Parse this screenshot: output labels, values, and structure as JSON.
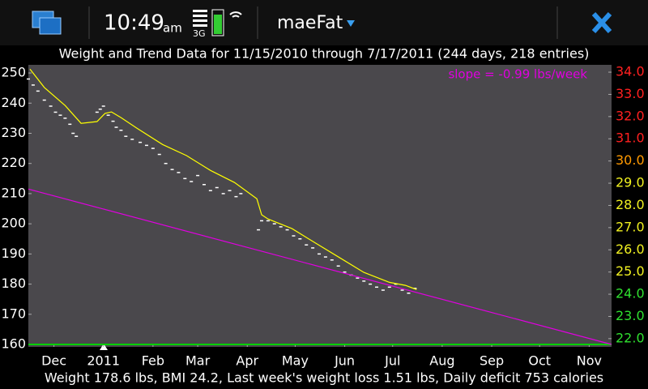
{
  "status_bar": {
    "time": "10:49",
    "ampm": "am",
    "network": "3G",
    "app": "maeFat"
  },
  "chart_data": {
    "type": "line",
    "title": "Weight and Trend Data for 11/15/2010 through 7/17/2011   (244 days, 218 entries)",
    "annotation": "slope =  -0.99 lbs/week",
    "annotation_color": "#e000e0",
    "xlim": [
      0,
      365
    ],
    "xticks": [
      {
        "value": 16,
        "label": "Dec"
      },
      {
        "value": 47,
        "label": "2011"
      },
      {
        "value": 78,
        "label": "Feb"
      },
      {
        "value": 106,
        "label": "Mar"
      },
      {
        "value": 137,
        "label": "Apr"
      },
      {
        "value": 167,
        "label": "May"
      },
      {
        "value": 198,
        "label": "Jun"
      },
      {
        "value": 228,
        "label": "Jul"
      },
      {
        "value": 259,
        "label": "Aug"
      },
      {
        "value": 290,
        "label": "Sep"
      },
      {
        "value": 320,
        "label": "Oct"
      },
      {
        "value": 351,
        "label": "Nov"
      }
    ],
    "ylim": [
      159.2,
      252.7
    ],
    "yticks": [
      160,
      170,
      180,
      190,
      200,
      210,
      220,
      230,
      240,
      250
    ],
    "y2lim": [
      21.63,
      34.33
    ],
    "y2ticks": [
      {
        "value": 22,
        "label": "22.0"
      },
      {
        "value": 23,
        "label": "23.0"
      },
      {
        "value": 24,
        "label": "24.0"
      },
      {
        "value": 25,
        "label": "25.0"
      },
      {
        "value": 26,
        "label": "26.0"
      },
      {
        "value": 27,
        "label": "27.0"
      },
      {
        "value": 28,
        "label": "28.0"
      },
      {
        "value": 29,
        "label": "29.0"
      },
      {
        "value": 30,
        "label": "30.0"
      },
      {
        "value": 31,
        "label": "31.0"
      },
      {
        "value": 32,
        "label": "32.0"
      },
      {
        "value": 33,
        "label": "33.0"
      },
      {
        "value": 34,
        "label": "34.0"
      }
    ],
    "y2tick_colors": [
      "#30e030",
      "#30e030",
      "#30e030",
      "#f0f020",
      "#f0f020",
      "#f0f020",
      "#f0f020",
      "#f0f020",
      "#ff9900",
      "#ff2020",
      "#ff2020",
      "#ff2020",
      "#ff2020"
    ],
    "hlines": [
      {
        "value": 160,
        "color": "#00d000"
      }
    ],
    "series": [
      {
        "style": "markers",
        "color": "#ffffff",
        "x": [
          0,
          3,
          6,
          10,
          14,
          17,
          20,
          23,
          26,
          28,
          30,
          43,
          45,
          47,
          50,
          53,
          55,
          58,
          61,
          65,
          70,
          74,
          78,
          82,
          86,
          90,
          94,
          98,
          102,
          106,
          110,
          114,
          118,
          122,
          126,
          130,
          133,
          144,
          146,
          150,
          154,
          158,
          162,
          166,
          170,
          174,
          178,
          182,
          186,
          190,
          194,
          198,
          202,
          206,
          210,
          214,
          218,
          222,
          226,
          230,
          234,
          238,
          242
        ],
        "values": [
          248,
          246,
          244,
          241,
          239,
          237,
          236,
          235,
          233,
          230,
          229,
          237,
          238,
          239,
          236,
          234,
          232,
          231,
          229,
          228,
          227,
          226,
          225,
          223,
          220,
          218,
          217,
          215,
          214,
          216,
          213,
          211,
          212,
          210,
          211,
          209,
          210,
          198,
          201,
          201,
          200,
          199,
          198,
          196,
          195,
          193,
          192,
          190,
          189,
          188,
          186,
          184,
          183,
          182,
          181,
          180,
          179,
          178,
          179,
          180,
          178,
          177,
          178.6
        ]
      },
      {
        "style": "line",
        "color": "#ffff00",
        "x": [
          1,
          10,
          23,
          33,
          43,
          48,
          52,
          58,
          68,
          84,
          99,
          114,
          129,
          143,
          146,
          150,
          165,
          180,
          195,
          210,
          226,
          236,
          243
        ],
        "values": [
          251.3,
          245.2,
          239.2,
          233.3,
          233.9,
          236.6,
          237.1,
          235.2,
          231.7,
          226.3,
          222.6,
          217.7,
          213.7,
          208.3,
          203.0,
          201.6,
          198.4,
          193.5,
          188.7,
          183.9,
          180.6,
          179.6,
          178.2
        ]
      },
      {
        "style": "line",
        "color": "#e000e0",
        "x": [
          0,
          365
        ],
        "values": [
          211.5,
          160
        ]
      }
    ]
  },
  "footer": "Weight 178.6 lbs,  BMI 24.2,  Last week's weight loss 1.51 lbs,  Daily deficit 753 calories"
}
